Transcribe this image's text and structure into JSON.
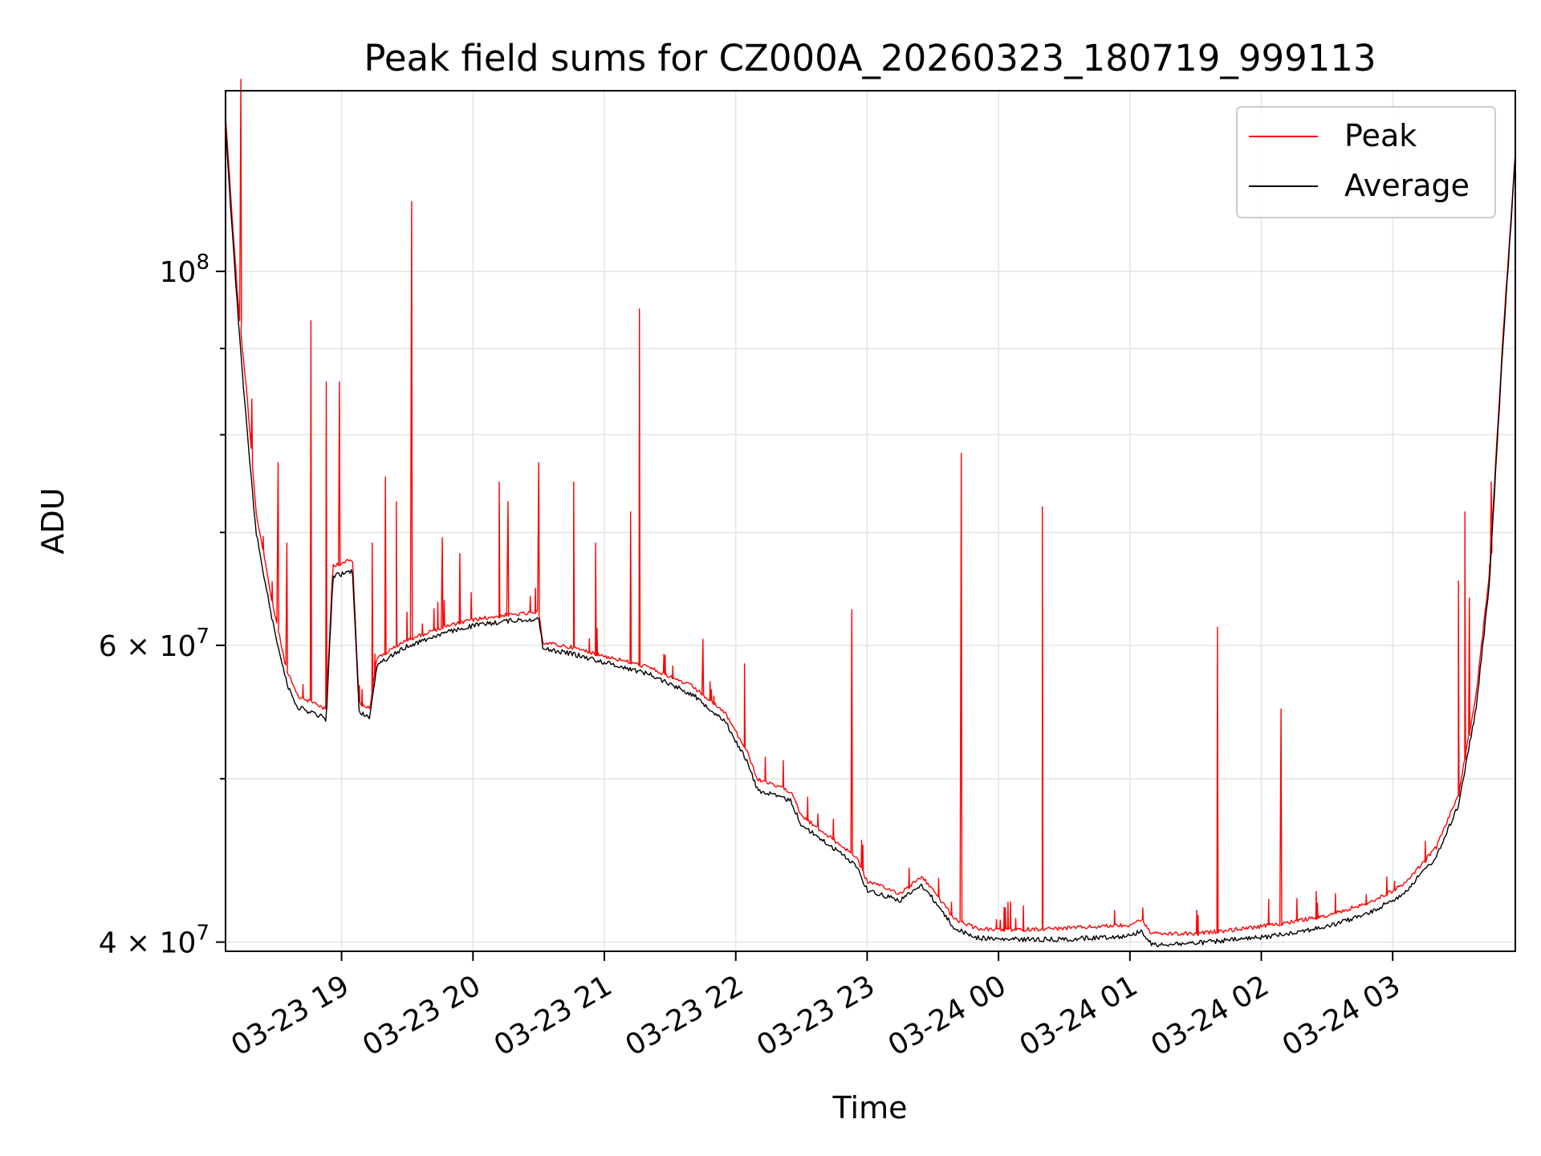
{
  "chart_data": {
    "type": "line",
    "title": "Peak field sums for CZ000A_20260323_180719_999113",
    "xlabel": "Time",
    "ylabel": "ADU",
    "x_axis": {
      "kind": "time",
      "start": "03-23 18:07",
      "end": "03-24 03:56",
      "ticks": [
        "03-23 19",
        "03-23 20",
        "03-23 21",
        "03-23 22",
        "03-23 23",
        "03-24 00",
        "03-24 01",
        "03-24 02",
        "03-24 03"
      ],
      "tick_rotation_deg": 30
    },
    "y_axis": {
      "scale": "log",
      "ylim": [
        39500000,
        128000000
      ],
      "major_ticks": [
        {
          "value": 100000000,
          "label_base": "10",
          "label_exp": "8",
          "label_mult": ""
        },
        {
          "value": 60000000,
          "label_base": "10",
          "label_exp": "7",
          "label_mult": "6 × "
        },
        {
          "value": 40000000,
          "label_base": "10",
          "label_exp": "7",
          "label_mult": "4 × "
        }
      ],
      "minor_gridlines": [
        50000000,
        70000000,
        80000000,
        90000000
      ]
    },
    "grid": true,
    "legend_position": "top-right",
    "series": [
      {
        "name": "Peak",
        "color": "#ff0000",
        "points": [
          [
            "03-23 18:07",
            124000000
          ],
          [
            "03-23 18:10",
            108000000
          ],
          [
            "03-23 18:13",
            95000000
          ],
          [
            "03-23 18:17",
            84000000
          ],
          [
            "03-23 18:21",
            72000000
          ],
          [
            "03-23 18:28",
            64000000
          ],
          [
            "03-23 18:35",
            58000000
          ],
          [
            "03-23 18:40",
            56000000
          ],
          [
            "03-23 18:48",
            55500000
          ],
          [
            "03-23 18:53",
            55000000
          ],
          [
            "03-23 18:56",
            67000000
          ],
          [
            "03-23 19:05",
            67500000
          ],
          [
            "03-23 19:08",
            55500000
          ],
          [
            "03-23 19:13",
            55200000
          ],
          [
            "03-23 19:16",
            59000000
          ],
          [
            "03-23 19:30",
            60500000
          ],
          [
            "03-23 19:45",
            61500000
          ],
          [
            "03-23 20:00",
            62200000
          ],
          [
            "03-23 20:15",
            62600000
          ],
          [
            "03-23 20:30",
            62800000
          ],
          [
            "03-23 20:32",
            60300000
          ],
          [
            "03-23 20:45",
            59900000
          ],
          [
            "03-23 21:00",
            59200000
          ],
          [
            "03-23 21:20",
            58300000
          ],
          [
            "03-23 21:40",
            56800000
          ],
          [
            "03-23 21:55",
            54800000
          ],
          [
            "03-23 22:05",
            52000000
          ],
          [
            "03-23 22:10",
            50000000
          ],
          [
            "03-23 22:25",
            49200000
          ],
          [
            "03-23 22:30",
            47600000
          ],
          [
            "03-23 22:45",
            46000000
          ],
          [
            "03-23 22:55",
            45000000
          ],
          [
            "03-23 23:00",
            43500000
          ],
          [
            "03-23 23:15",
            42800000
          ],
          [
            "03-23 23:25",
            43800000
          ],
          [
            "03-23 23:30",
            43000000
          ],
          [
            "03-23 23:40",
            41300000
          ],
          [
            "03-23 23:50",
            40800000
          ],
          [
            "03-24 00:00",
            40700000
          ],
          [
            "03-24 00:30",
            40800000
          ],
          [
            "03-24 01:00",
            41000000
          ],
          [
            "03-24 01:05",
            41300000
          ],
          [
            "03-24 01:10",
            40500000
          ],
          [
            "03-24 01:30",
            40500000
          ],
          [
            "03-24 02:00",
            40900000
          ],
          [
            "03-24 02:30",
            41500000
          ],
          [
            "03-24 02:50",
            42300000
          ],
          [
            "03-24 03:05",
            43300000
          ],
          [
            "03-24 03:20",
            45600000
          ],
          [
            "03-24 03:30",
            49000000
          ],
          [
            "03-24 03:38",
            56000000
          ],
          [
            "03-24 03:44",
            66000000
          ],
          [
            "03-24 03:50",
            90000000
          ],
          [
            "03-24 03:56",
            118000000
          ]
        ],
        "spikes": [
          [
            "03-23 18:14",
            130000000
          ],
          [
            "03-23 18:19",
            84000000
          ],
          [
            "03-23 18:31",
            77000000
          ],
          [
            "03-23 18:35",
            69000000
          ],
          [
            "03-23 18:46",
            93500000
          ],
          [
            "03-23 18:53",
            86000000
          ],
          [
            "03-23 18:59",
            86000000
          ],
          [
            "03-23 19:14",
            69000000
          ],
          [
            "03-23 19:20",
            75500000
          ],
          [
            "03-23 19:25",
            73000000
          ],
          [
            "03-23 19:32",
            110000000
          ],
          [
            "03-23 19:46",
            69500000
          ],
          [
            "03-23 19:54",
            68000000
          ],
          [
            "03-23 20:12",
            75000000
          ],
          [
            "03-23 20:16",
            73000000
          ],
          [
            "03-23 20:30",
            77000000
          ],
          [
            "03-23 20:46",
            75000000
          ],
          [
            "03-23 20:56",
            69000000
          ],
          [
            "03-23 21:12",
            72000000
          ],
          [
            "03-23 21:16",
            95000000
          ],
          [
            "03-23 21:45",
            60500000
          ],
          [
            "03-23 22:04",
            58500000
          ],
          [
            "03-23 22:53",
            63000000
          ],
          [
            "03-23 23:43",
            78000000
          ],
          [
            "03-24 00:20",
            72500000
          ],
          [
            "03-24 01:40",
            61500000
          ],
          [
            "03-24 02:09",
            55000000
          ],
          [
            "03-24 03:30",
            65500000
          ],
          [
            "03-24 03:33",
            72000000
          ],
          [
            "03-24 03:35",
            64000000
          ],
          [
            "03-24 03:45",
            75000000
          ]
        ]
      },
      {
        "name": "Average",
        "color": "#000000",
        "points": [
          [
            "03-23 18:07",
            122000000
          ],
          [
            "03-23 18:10",
            106000000
          ],
          [
            "03-23 18:13",
            93000000
          ],
          [
            "03-23 18:17",
            80000000
          ],
          [
            "03-23 18:21",
            70000000
          ],
          [
            "03-23 18:28",
            62500000
          ],
          [
            "03-23 18:35",
            57000000
          ],
          [
            "03-23 18:40",
            55200000
          ],
          [
            "03-23 18:48",
            54700000
          ],
          [
            "03-23 18:53",
            54300000
          ],
          [
            "03-23 18:56",
            66000000
          ],
          [
            "03-23 19:05",
            66500000
          ],
          [
            "03-23 19:08",
            54800000
          ],
          [
            "03-23 19:13",
            54500000
          ],
          [
            "03-23 19:16",
            58500000
          ],
          [
            "03-23 19:30",
            60000000
          ],
          [
            "03-23 19:45",
            61000000
          ],
          [
            "03-23 20:00",
            61700000
          ],
          [
            "03-23 20:15",
            62100000
          ],
          [
            "03-23 20:30",
            62300000
          ],
          [
            "03-23 20:32",
            59800000
          ],
          [
            "03-23 20:45",
            59400000
          ],
          [
            "03-23 21:00",
            58700000
          ],
          [
            "03-23 21:20",
            57800000
          ],
          [
            "03-23 21:40",
            56200000
          ],
          [
            "03-23 21:55",
            54200000
          ],
          [
            "03-23 22:05",
            51300000
          ],
          [
            "03-23 22:10",
            49300000
          ],
          [
            "03-23 22:25",
            48600000
          ],
          [
            "03-23 22:30",
            47000000
          ],
          [
            "03-23 22:45",
            45500000
          ],
          [
            "03-23 22:55",
            44500000
          ],
          [
            "03-23 23:00",
            43000000
          ],
          [
            "03-23 23:15",
            42400000
          ],
          [
            "03-23 23:25",
            43300000
          ],
          [
            "03-23 23:30",
            42500000
          ],
          [
            "03-23 23:40",
            40800000
          ],
          [
            "03-23 23:50",
            40300000
          ],
          [
            "03-24 00:00",
            40200000
          ],
          [
            "03-24 00:30",
            40200000
          ],
          [
            "03-24 01:00",
            40400000
          ],
          [
            "03-24 01:05",
            40700000
          ],
          [
            "03-24 01:10",
            39900000
          ],
          [
            "03-24 01:30",
            40000000
          ],
          [
            "03-24 02:00",
            40300000
          ],
          [
            "03-24 02:30",
            40900000
          ],
          [
            "03-24 02:50",
            41700000
          ],
          [
            "03-24 03:05",
            42800000
          ],
          [
            "03-24 03:20",
            45000000
          ],
          [
            "03-24 03:30",
            48300000
          ],
          [
            "03-24 03:38",
            55000000
          ],
          [
            "03-24 03:44",
            65000000
          ],
          [
            "03-24 03:50",
            89000000
          ],
          [
            "03-24 03:56",
            117000000
          ]
        ]
      }
    ]
  }
}
